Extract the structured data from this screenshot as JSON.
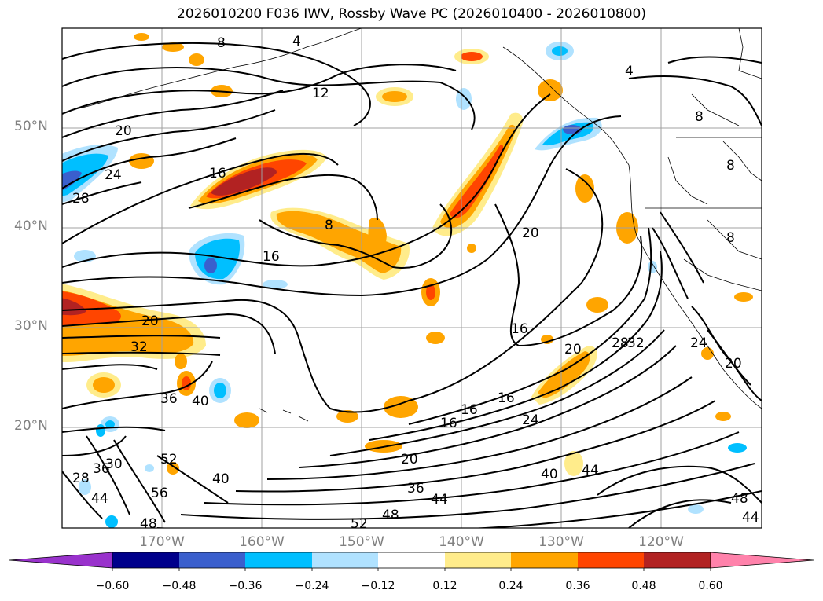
{
  "title": "2026010200 F036 IWV, Rossby Wave PC (2026010400 - 2026010800)",
  "latitude_labels": [
    "50°N",
    "40°N",
    "30°N",
    "20°N"
  ],
  "longitude_labels": [
    "170°W",
    "160°W",
    "150°W",
    "140°W",
    "130°W",
    "120°W"
  ],
  "contour_labels": [
    "8",
    "4",
    "4",
    "12",
    "20",
    "24",
    "28",
    "16",
    "8",
    "16",
    "20",
    "20",
    "32",
    "20",
    "16",
    "28",
    "32",
    "24",
    "20",
    "36",
    "40",
    "16",
    "16",
    "16",
    "24",
    "20",
    "36",
    "44",
    "40",
    "44",
    "52",
    "48",
    "56",
    "40",
    "28",
    "36",
    "30",
    "44",
    "48",
    "52",
    "48",
    "44",
    "8",
    "8",
    "8"
  ],
  "colorbar": {
    "ticks": [
      "−0.60",
      "−0.48",
      "−0.36",
      "−0.24",
      "−0.12",
      "0.12",
      "0.24",
      "0.36",
      "0.48",
      "0.60"
    ],
    "colors": [
      "#9932cc",
      "#00008b",
      "#3a5fcd",
      "#00bfff",
      "#b0e2ff",
      "#ffffff",
      "#ffec8b",
      "#ffa500",
      "#ff4500",
      "#b22222",
      "#ff82ab"
    ]
  }
}
